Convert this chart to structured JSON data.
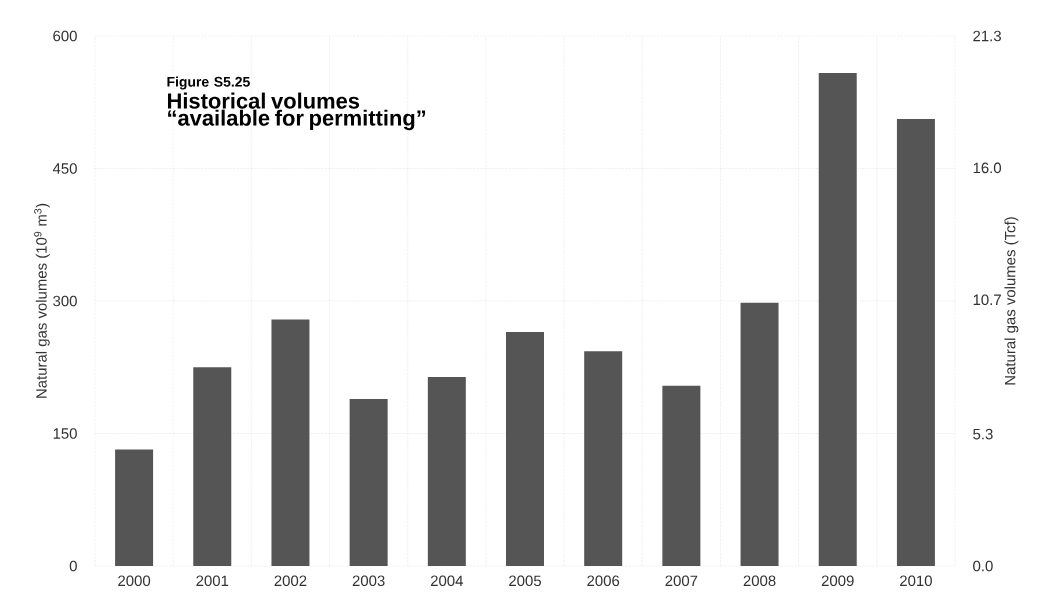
{
  "chart_data": {
    "type": "bar",
    "subtitle": "Figure S5.25",
    "title": "Historical volumes “available for permitting”",
    "ylabel": "Natural gas volumes (10$^{9}$ m$^{3}$)",
    "y2label": "Natural gas volumes (Tcf)",
    "categories": [
      "2000",
      "2001",
      "2002",
      "2003",
      "2004",
      "2005",
      "2006",
      "2007",
      "2008",
      "2009",
      "2010"
    ],
    "values": [
      132,
      225,
      279,
      189,
      214,
      265,
      243,
      204,
      298,
      558,
      506
    ],
    "color": "#555555",
    "ylim": [
      0,
      600
    ],
    "yticks": [
      0,
      150,
      300,
      450,
      600
    ],
    "y2lim": [
      0,
      21.3
    ],
    "y2ticks": [
      {
        "value": 0,
        "label": "0.0"
      },
      {
        "value": 5.3,
        "label": "5.3"
      },
      {
        "value": 10.7,
        "label": "10.7"
      },
      {
        "value": 16.0,
        "label": "16.0"
      },
      {
        "value": 21.3,
        "label": "21.3"
      }
    ],
    "grid": true
  }
}
